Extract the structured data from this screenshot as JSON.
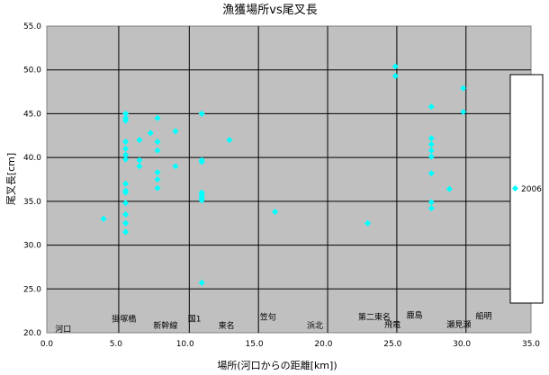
{
  "chart_data": {
    "type": "scatter",
    "title": "漁獲場所vs尾叉長",
    "xlabel": "場所(河口からの距離[km])",
    "ylabel": "尾叉長[cm]",
    "xlim": [
      0,
      35
    ],
    "ylim": [
      20,
      55
    ],
    "x_ticks": [
      "0.0",
      "5.0",
      "10.0",
      "15.0",
      "20.0",
      "25.0",
      "30.0",
      "35.0"
    ],
    "y_ticks": [
      "20.0",
      "25.0",
      "30.0",
      "35.0",
      "40.0",
      "45.0",
      "50.0",
      "55.0"
    ],
    "grid": "y-horizontal",
    "legend_position": "right",
    "plot_bg": "#c0c0c0",
    "marker_color": "#00ffff",
    "series": [
      {
        "name": "2006",
        "points": [
          [
            4.1,
            33.0
          ],
          [
            5.7,
            45.0
          ],
          [
            5.7,
            44.5
          ],
          [
            5.7,
            44.2
          ],
          [
            5.7,
            41.8
          ],
          [
            5.7,
            41.0
          ],
          [
            5.7,
            40.3
          ],
          [
            5.7,
            39.8
          ],
          [
            5.7,
            37.0
          ],
          [
            5.7,
            36.2
          ],
          [
            5.7,
            36.0
          ],
          [
            5.7,
            34.8
          ],
          [
            5.7,
            33.5
          ],
          [
            5.7,
            32.5
          ],
          [
            5.7,
            31.5
          ],
          [
            6.7,
            42.0
          ],
          [
            6.7,
            39.7
          ],
          [
            6.7,
            39.0
          ],
          [
            7.5,
            42.8
          ],
          [
            8.0,
            44.5
          ],
          [
            8.0,
            41.8
          ],
          [
            8.0,
            40.8
          ],
          [
            8.0,
            38.3
          ],
          [
            8.0,
            37.5
          ],
          [
            8.0,
            36.5
          ],
          [
            9.3,
            43.0
          ],
          [
            9.3,
            39.0
          ],
          [
            11.2,
            45.0
          ],
          [
            11.2,
            39.7
          ],
          [
            11.2,
            39.5
          ],
          [
            11.2,
            36.0
          ],
          [
            11.2,
            35.8
          ],
          [
            11.2,
            35.5
          ],
          [
            11.2,
            35.3
          ],
          [
            11.2,
            35.1
          ],
          [
            11.2,
            25.7
          ],
          [
            13.2,
            42.0
          ],
          [
            16.5,
            33.8
          ],
          [
            23.2,
            32.5
          ],
          [
            25.2,
            50.4
          ],
          [
            25.2,
            49.3
          ],
          [
            27.8,
            45.8
          ],
          [
            27.8,
            42.2
          ],
          [
            27.8,
            41.5
          ],
          [
            27.8,
            40.8
          ],
          [
            27.8,
            40.1
          ],
          [
            27.8,
            38.2
          ],
          [
            27.8,
            34.9
          ],
          [
            27.8,
            34.2
          ],
          [
            29.1,
            36.4
          ],
          [
            30.1,
            47.9
          ],
          [
            30.1,
            45.2
          ]
        ]
      }
    ],
    "vertical_lines_x": [
      5.2,
      10.3,
      15.3,
      20.3,
      25.3,
      30.3
    ],
    "annotations": [
      {
        "text": "河口",
        "x": 0.6,
        "y": 20.1
      },
      {
        "text": "掛塚橋",
        "x": 4.7,
        "y": 21.3
      },
      {
        "text": "新幹線",
        "x": 7.7,
        "y": 20.5
      },
      {
        "text": "国1",
        "x": 10.2,
        "y": 21.3
      },
      {
        "text": "東名",
        "x": 12.4,
        "y": 20.5
      },
      {
        "text": "笠句",
        "x": 15.4,
        "y": 21.5
      },
      {
        "text": "浜北",
        "x": 18.8,
        "y": 20.5
      },
      {
        "text": "第二東名",
        "x": 22.5,
        "y": 21.5
      },
      {
        "text": "鹿島",
        "x": 26.0,
        "y": 21.7
      },
      {
        "text": "飛竜",
        "x": 24.4,
        "y": 20.6
      },
      {
        "text": "瀬見瀬",
        "x": 28.9,
        "y": 20.6
      },
      {
        "text": "船明",
        "x": 31.0,
        "y": 21.6
      }
    ]
  }
}
